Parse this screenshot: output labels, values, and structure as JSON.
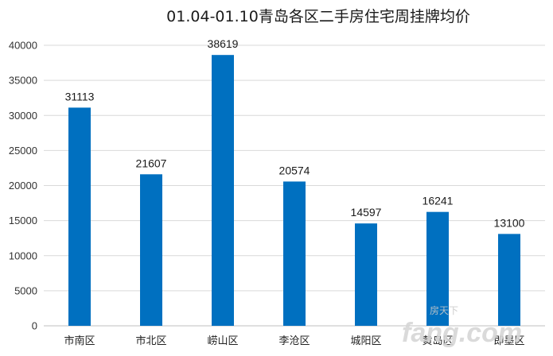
{
  "chart_data": {
    "type": "bar",
    "title": "01.04-01.10青岛各区二手房住宅周挂牌均价",
    "categories": [
      "市南区",
      "市北区",
      "崂山区",
      "李沧区",
      "城阳区",
      "黄岛区",
      "即墨区"
    ],
    "values": [
      31113,
      21607,
      38619,
      20574,
      14597,
      16241,
      13100
    ],
    "ylim": [
      0,
      40000
    ],
    "yticks": [
      0,
      5000,
      10000,
      15000,
      20000,
      25000,
      30000,
      35000,
      40000
    ],
    "xlabel": "",
    "ylabel": "",
    "grid": true,
    "bar_color": "#0070c0",
    "data_labels": true
  },
  "watermark": {
    "text": "fang.com",
    "cn_text": "房天下"
  }
}
